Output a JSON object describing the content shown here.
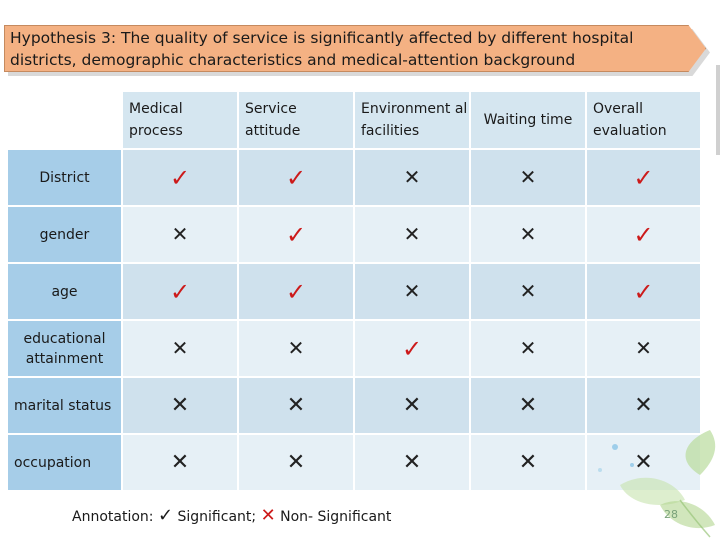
{
  "title": "Hypothesis 3: The quality of service is significantly affected by different hospital districts, demographic characteristics and medical-attention background",
  "columns": [
    "Medical process",
    "Service attitude",
    "Environment al facilities",
    "Waiting time",
    "Overall evaluation"
  ],
  "rows": [
    {
      "label": "District",
      "marks": [
        "sig",
        "sig",
        "ns",
        "ns",
        "sig"
      ]
    },
    {
      "label": "gender",
      "marks": [
        "ns",
        "sig",
        "ns",
        "ns",
        "sig"
      ]
    },
    {
      "label": "age",
      "marks": [
        "sig",
        "sig",
        "ns",
        "ns",
        "sig"
      ]
    },
    {
      "label": "educational attainment",
      "marks": [
        "ns",
        "ns",
        "sig",
        "ns",
        "ns"
      ]
    },
    {
      "label": "marital status",
      "marks": [
        "ns",
        "ns",
        "ns",
        "ns",
        "ns"
      ]
    },
    {
      "label": "occupation",
      "marks": [
        "ns",
        "ns",
        "ns",
        "ns",
        "ns"
      ]
    }
  ],
  "symbols": {
    "significant": "✓",
    "non_significant": "✕"
  },
  "annotation": {
    "prefix": "Annotation:",
    "significant_label": "Significant;",
    "non_significant_label": "Non- Significant"
  },
  "page_number": "28",
  "colors": {
    "banner": "#f4b183",
    "header_cell": "#d5e6f0",
    "row_label_cell": "#a6cde8",
    "significant_mark": "#cc1a1a"
  }
}
